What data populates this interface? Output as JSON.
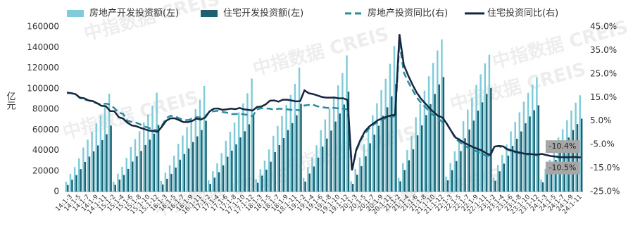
{
  "chart_data": {
    "type": "bar",
    "y_label": "亿元",
    "watermark": "中指数据 CREIS",
    "grid": false,
    "categories": [
      null,
      "14:1-3",
      null,
      "14:1-5",
      null,
      "14:1-7",
      null,
      "14:1-9",
      null,
      "14:1-11",
      null,
      "15:1-2",
      null,
      "15:1-4",
      null,
      "15:1-6",
      null,
      "15:1-8",
      null,
      "15:1-10",
      null,
      "15:1-12",
      null,
      "16:1-3",
      null,
      "16:1-5",
      null,
      "16:1-7",
      null,
      "16:1-9",
      null,
      "16:1-11",
      null,
      "17:1-2",
      null,
      "17:1-4",
      null,
      "17:1-6",
      null,
      "17:1-8",
      null,
      "17:1-10",
      null,
      "17:1-12",
      null,
      "18:1-3",
      null,
      "18:1-5",
      null,
      "18:1-7",
      null,
      "18:1-9",
      null,
      "18:1-11",
      null,
      "19:1-2",
      null,
      "19:1-4",
      null,
      "19:1-6",
      null,
      "19:1-8",
      null,
      "19:1-10",
      null,
      "19:1-12",
      null,
      "20:1-3",
      null,
      "20:1-5",
      null,
      "20:1-7",
      null,
      "20:1-9",
      null,
      "20:1-11",
      null,
      "21:1-2",
      null,
      "21:1-4",
      null,
      "21:1-6",
      null,
      "21:1-8",
      null,
      "21:1-10",
      null,
      "21:1-12",
      null,
      "22:1-3",
      null,
      "22:1-5",
      null,
      "22:1-7",
      null,
      "22:1-9",
      null,
      "22:1-11",
      null,
      "23:1-2",
      null,
      "23:1-4",
      null,
      "23:1-6",
      null,
      "23:1-8",
      null,
      "23:1-10",
      null,
      "23:1-12",
      null,
      "24:1-3",
      null,
      "24:1-5",
      null,
      "24:1-7",
      null,
      "24:1-9",
      null,
      "24:1-11"
    ],
    "ylim": [
      0,
      160000
    ],
    "yticks": [
      0,
      20000,
      40000,
      60000,
      80000,
      100000,
      120000,
      140000,
      160000
    ],
    "y2lim": [
      -25,
      45
    ],
    "y2ticks": [
      {
        "value": -25,
        "label": "-25.0%"
      },
      {
        "value": -15,
        "label": "-15.0%"
      },
      {
        "value": -5,
        "label": "-5.0%"
      },
      {
        "value": 5,
        "label": "5.0%"
      },
      {
        "value": 15,
        "label": "15.0%"
      },
      {
        "value": 25,
        "label": "25.0%"
      },
      {
        "value": 35,
        "label": "35.0%"
      },
      {
        "value": 45,
        "label": "45.0%"
      }
    ],
    "series": [
      {
        "name": "房地产开发投资额(左)",
        "type": "bar",
        "color": "#7fcbd9",
        "values": [
          9500,
          17100,
          23750,
          32300,
          42750,
          50350,
          57950,
          66500,
          74100,
          82650,
          95000,
          9600,
          17280,
          24000,
          32640,
          43200,
          50880,
          58560,
          67200,
          74880,
          83520,
          96000,
          10260,
          18470,
          25650,
          34880,
          46170,
          54380,
          62590,
          71820,
          80030,
          89260,
          102600,
          10980,
          19760,
          27450,
          37330,
          49410,
          58190,
          66980,
          76860,
          85640,
          95530,
          109800,
          12030,
          21650,
          30080,
          40900,
          54140,
          63760,
          73380,
          84210,
          93830,
          104660,
          120300,
          13220,
          23800,
          33050,
          44950,
          59490,
          70070,
          80640,
          92540,
          103120,
          115010,
          132200,
          10100,
          22000,
          33100,
          45900,
          63000,
          74100,
          85700,
          98500,
          109600,
          124000,
          141400,
          13300,
          27700,
          40300,
          54300,
          72200,
          84900,
          98000,
          112000,
          124900,
          137000,
          147600,
          14500,
          27800,
          39200,
          52100,
          68300,
          79500,
          90800,
          103600,
          113900,
          124400,
          132900,
          13700,
          25900,
          35500,
          45700,
          58500,
          67700,
          76900,
          87300,
          95900,
          104000,
          110900,
          11800,
          22100,
          30900,
          40600,
          52500,
          60500,
          69300,
          78700,
          86300,
          93500
        ]
      },
      {
        "name": "住宅开发投资额(左)",
        "type": "bar",
        "color": "#1e6070",
        "values": [
          6400,
          11520,
          16000,
          21760,
          28800,
          33920,
          39040,
          44800,
          49920,
          55680,
          64000,
          6460,
          11630,
          16150,
          21960,
          29070,
          34240,
          39410,
          45220,
          50390,
          56200,
          64600,
          6870,
          12370,
          17180,
          23360,
          30920,
          36410,
          41910,
          48090,
          53590,
          59770,
          68700,
          7510,
          13520,
          18780,
          25530,
          33800,
          39800,
          45810,
          52570,
          58580,
          65340,
          75100,
          8520,
          15340,
          21300,
          28970,
          38340,
          45160,
          51970,
          59640,
          66460,
          74120,
          85200,
          9710,
          17480,
          24280,
          33010,
          43700,
          51460,
          59230,
          67970,
          75740,
          84480,
          97100,
          7500,
          16400,
          24700,
          34300,
          46900,
          55200,
          63900,
          73600,
          81800,
          92500,
          104400,
          10000,
          20900,
          30400,
          41000,
          54600,
          64300,
          74300,
          84900,
          94800,
          104000,
          111200,
          10900,
          20800,
          29600,
          39300,
          51800,
          60200,
          68900,
          78600,
          86600,
          94700,
          100600,
          10400,
          19700,
          27100,
          34900,
          44400,
          51300,
          58400,
          66300,
          72900,
          79000,
          83800,
          9000,
          16800,
          23500,
          30800,
          39900,
          45900,
          52500,
          59700,
          65500,
          70800
        ]
      },
      {
        "name": "房地产投资同比(右)",
        "type": "line",
        "axis": "y2",
        "dash": true,
        "color": "#2a8c9c",
        "values": [
          16.8,
          16.8,
          16.4,
          14.7,
          14.1,
          13.7,
          13.2,
          12.4,
          11.9,
          12.4,
          11.9,
          10.4,
          8.5,
          8.0,
          5.1,
          4.6,
          4.3,
          3.5,
          2.6,
          2.0,
          1.3,
          1.0,
          3.0,
          6.2,
          7.2,
          7.0,
          6.1,
          5.3,
          5.4,
          5.8,
          6.6,
          6.5,
          6.9,
          8.9,
          9.1,
          9.3,
          8.8,
          8.5,
          7.9,
          7.9,
          8.1,
          7.8,
          7.5,
          7.0,
          9.9,
          10.4,
          10.3,
          10.2,
          9.7,
          10.2,
          10.1,
          9.9,
          9.7,
          9.7,
          9.5,
          11.6,
          11.8,
          11.9,
          11.2,
          10.9,
          10.6,
          10.5,
          10.5,
          10.3,
          10.2,
          9.9,
          -16.3,
          -7.7,
          -3.3,
          -0.3,
          1.9,
          3.4,
          4.6,
          5.6,
          6.3,
          6.8,
          7.0,
          38.3,
          25.6,
          21.6,
          18.3,
          15.0,
          12.7,
          10.9,
          8.8,
          7.2,
          6.0,
          4.4,
          3.7,
          0.7,
          -2.7,
          -4.0,
          -5.4,
          -6.4,
          -7.4,
          -8.0,
          -8.8,
          -9.8,
          -10.0,
          -5.7,
          -5.8,
          -6.2,
          -7.2,
          -7.9,
          -8.5,
          -8.8,
          -9.1,
          -9.3,
          -9.4,
          -9.6,
          -9.0,
          -9.5,
          -9.8,
          -10.1,
          -10.1,
          -10.2,
          -10.2,
          -10.1,
          -10.3,
          -10.4
        ]
      },
      {
        "name": "住宅投资同比(右)",
        "type": "line",
        "axis": "y2",
        "dash": false,
        "color": "#162640",
        "values": [
          17.1,
          16.8,
          16.4,
          14.9,
          14.6,
          13.7,
          13.4,
          12.5,
          11.4,
          11.3,
          9.2,
          9.1,
          6.6,
          6.0,
          4.3,
          3.1,
          2.8,
          2.1,
          1.5,
          0.9,
          0.7,
          0.4,
          2.6,
          5.1,
          6.1,
          6.1,
          5.3,
          4.5,
          4.5,
          5.0,
          6.0,
          5.6,
          6.4,
          9.0,
          10.2,
          10.3,
          9.7,
          9.9,
          10.2,
          10.0,
          10.5,
          9.9,
          9.7,
          9.4,
          10.9,
          11.1,
          12.0,
          13.6,
          13.7,
          13.2,
          14.0,
          14.0,
          13.7,
          13.3,
          13.4,
          18.0,
          16.8,
          16.4,
          15.8,
          15.2,
          14.9,
          14.9,
          14.9,
          14.6,
          14.6,
          13.9,
          -16.0,
          -7.2,
          -2.9,
          0.6,
          2.6,
          4.0,
          5.3,
          6.1,
          6.8,
          7.3,
          7.6,
          41.9,
          28.8,
          24.4,
          20.5,
          17.0,
          14.4,
          12.4,
          10.3,
          8.6,
          7.1,
          6.4,
          3.7,
          0.7,
          -2.1,
          -3.1,
          -4.3,
          -5.2,
          -6.1,
          -6.8,
          -7.5,
          -8.6,
          -9.5,
          -5.9,
          -5.6,
          -5.8,
          -7.0,
          -7.6,
          -8.1,
          -8.5,
          -8.9,
          -9.0,
          -9.2,
          -9.3,
          -9.0,
          -9.5,
          -9.9,
          -10.1,
          -10.4,
          -10.4,
          -10.5,
          -10.3,
          -10.4,
          -10.5
        ]
      }
    ],
    "annotations": [
      {
        "label": "-10.4%",
        "value": -10.4
      },
      {
        "label": "-10.5%",
        "value": -10.5
      }
    ]
  }
}
